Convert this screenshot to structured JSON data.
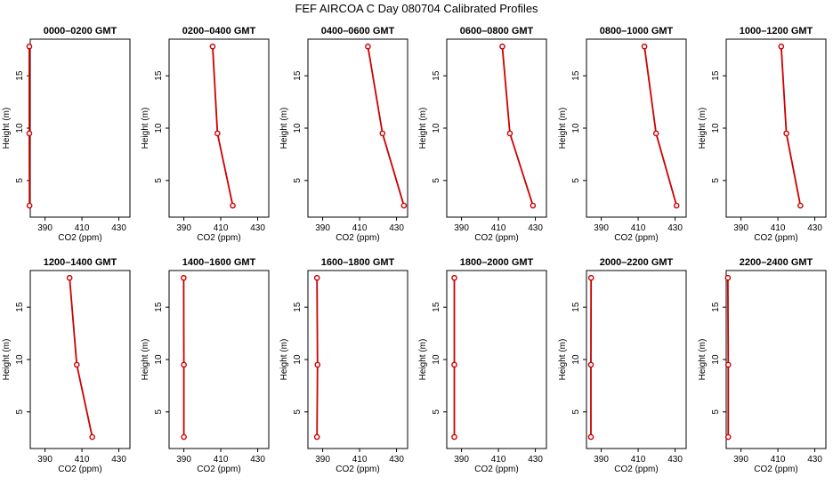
{
  "page_title": "FEF AIRCOA C  Day 080704  Calibrated Profiles",
  "colors": {
    "profile": "#cc0000",
    "axis": "#000000"
  },
  "chart_data": [
    {
      "type": "line",
      "title": "0000–0200 GMT",
      "xlabel": "CO2 (ppm)",
      "ylabel": "Height (m)",
      "xlim": [
        382,
        436
      ],
      "ylim": [
        1.5,
        18.5
      ],
      "xticks": [
        "390",
        "410",
        "430"
      ],
      "yticks": [
        "5",
        "10",
        "15"
      ],
      "x": [
        381.6,
        381.5,
        381.5
      ],
      "y": [
        2.6,
        9.5,
        17.8
      ]
    },
    {
      "type": "line",
      "title": "0200–0400 GMT",
      "xlabel": "CO2 (ppm)",
      "ylabel": "Height (m)",
      "xlim": [
        382,
        436
      ],
      "ylim": [
        1.5,
        18.5
      ],
      "xticks": [
        "390",
        "410",
        "430"
      ],
      "yticks": [
        "5",
        "10",
        "15"
      ],
      "x": [
        416.5,
        408.2,
        405.6
      ],
      "y": [
        2.6,
        9.5,
        17.8
      ]
    },
    {
      "type": "line",
      "title": "0400–0600 GMT",
      "xlabel": "CO2 (ppm)",
      "ylabel": "Height (m)",
      "xlim": [
        382,
        436
      ],
      "ylim": [
        1.5,
        18.5
      ],
      "xticks": [
        "390",
        "410",
        "430"
      ],
      "yticks": [
        "5",
        "10",
        "15"
      ],
      "x": [
        434.0,
        422.4,
        414.5
      ],
      "y": [
        2.6,
        9.5,
        17.8
      ]
    },
    {
      "type": "line",
      "title": "0600–0800 GMT",
      "xlabel": "CO2 (ppm)",
      "ylabel": "Height (m)",
      "xlim": [
        382,
        436
      ],
      "ylim": [
        1.5,
        18.5
      ],
      "xticks": [
        "390",
        "410",
        "430"
      ],
      "yticks": [
        "5",
        "10",
        "15"
      ],
      "x": [
        428.7,
        416.2,
        412.1
      ],
      "y": [
        2.6,
        9.5,
        17.8
      ]
    },
    {
      "type": "line",
      "title": "0800–1000 GMT",
      "xlabel": "CO2 (ppm)",
      "ylabel": "Height (m)",
      "xlim": [
        382,
        436
      ],
      "ylim": [
        1.5,
        18.5
      ],
      "xticks": [
        "390",
        "410",
        "430"
      ],
      "yticks": [
        "5",
        "10",
        "15"
      ],
      "x": [
        430.8,
        419.7,
        413.4
      ],
      "y": [
        2.6,
        9.5,
        17.8
      ]
    },
    {
      "type": "line",
      "title": "1000–1200 GMT",
      "xlabel": "CO2 (ppm)",
      "ylabel": "Height (m)",
      "xlim": [
        382,
        436
      ],
      "ylim": [
        1.5,
        18.5
      ],
      "xticks": [
        "390",
        "410",
        "430"
      ],
      "yticks": [
        "5",
        "10",
        "15"
      ],
      "x": [
        422.2,
        414.6,
        411.8
      ],
      "y": [
        2.6,
        9.5,
        17.8
      ]
    },
    {
      "type": "line",
      "title": "1200–1400 GMT",
      "xlabel": "CO2 (ppm)",
      "ylabel": "Height (m)",
      "xlim": [
        382,
        436
      ],
      "ylim": [
        1.5,
        18.5
      ],
      "xticks": [
        "390",
        "410",
        "430"
      ],
      "yticks": [
        "5",
        "10",
        "15"
      ],
      "x": [
        415.6,
        407.2,
        403.3
      ],
      "y": [
        2.6,
        9.5,
        17.8
      ]
    },
    {
      "type": "line",
      "title": "1400–1600 GMT",
      "xlabel": "CO2 (ppm)",
      "ylabel": "Height (m)",
      "xlim": [
        382,
        436
      ],
      "ylim": [
        1.5,
        18.5
      ],
      "xticks": [
        "390",
        "410",
        "430"
      ],
      "yticks": [
        "5",
        "10",
        "15"
      ],
      "x": [
        390.0,
        390.0,
        389.9
      ],
      "y": [
        2.6,
        9.5,
        17.8
      ]
    },
    {
      "type": "line",
      "title": "1600–1800 GMT",
      "xlabel": "CO2 (ppm)",
      "ylabel": "Height (m)",
      "xlim": [
        382,
        436
      ],
      "ylim": [
        1.5,
        18.5
      ],
      "xticks": [
        "390",
        "410",
        "430"
      ],
      "yticks": [
        "5",
        "10",
        "15"
      ],
      "x": [
        386.9,
        387.2,
        386.9
      ],
      "y": [
        2.6,
        9.5,
        17.8
      ]
    },
    {
      "type": "line",
      "title": "1800–2000 GMT",
      "xlabel": "CO2 (ppm)",
      "ylabel": "Height (m)",
      "xlim": [
        382,
        436
      ],
      "ylim": [
        1.5,
        18.5
      ],
      "xticks": [
        "390",
        "410",
        "430"
      ],
      "yticks": [
        "5",
        "10",
        "15"
      ],
      "x": [
        386.1,
        386.1,
        386.1
      ],
      "y": [
        2.6,
        9.5,
        17.8
      ]
    },
    {
      "type": "line",
      "title": "2000–2200 GMT",
      "xlabel": "CO2 (ppm)",
      "ylabel": "Height (m)",
      "xlim": [
        382,
        436
      ],
      "ylim": [
        1.5,
        18.5
      ],
      "xticks": [
        "390",
        "410",
        "430"
      ],
      "yticks": [
        "5",
        "10",
        "15"
      ],
      "x": [
        384.4,
        384.4,
        384.5
      ],
      "y": [
        2.6,
        9.5,
        17.8
      ]
    },
    {
      "type": "line",
      "title": "2200–2400 GMT",
      "xlabel": "CO2 (ppm)",
      "ylabel": "Height (m)",
      "xlim": [
        382,
        436
      ],
      "ylim": [
        1.5,
        18.5
      ],
      "xticks": [
        "390",
        "410",
        "430"
      ],
      "yticks": [
        "5",
        "10",
        "15"
      ],
      "x": [
        383.1,
        383.1,
        382.9
      ],
      "y": [
        2.6,
        9.5,
        17.8
      ]
    }
  ]
}
